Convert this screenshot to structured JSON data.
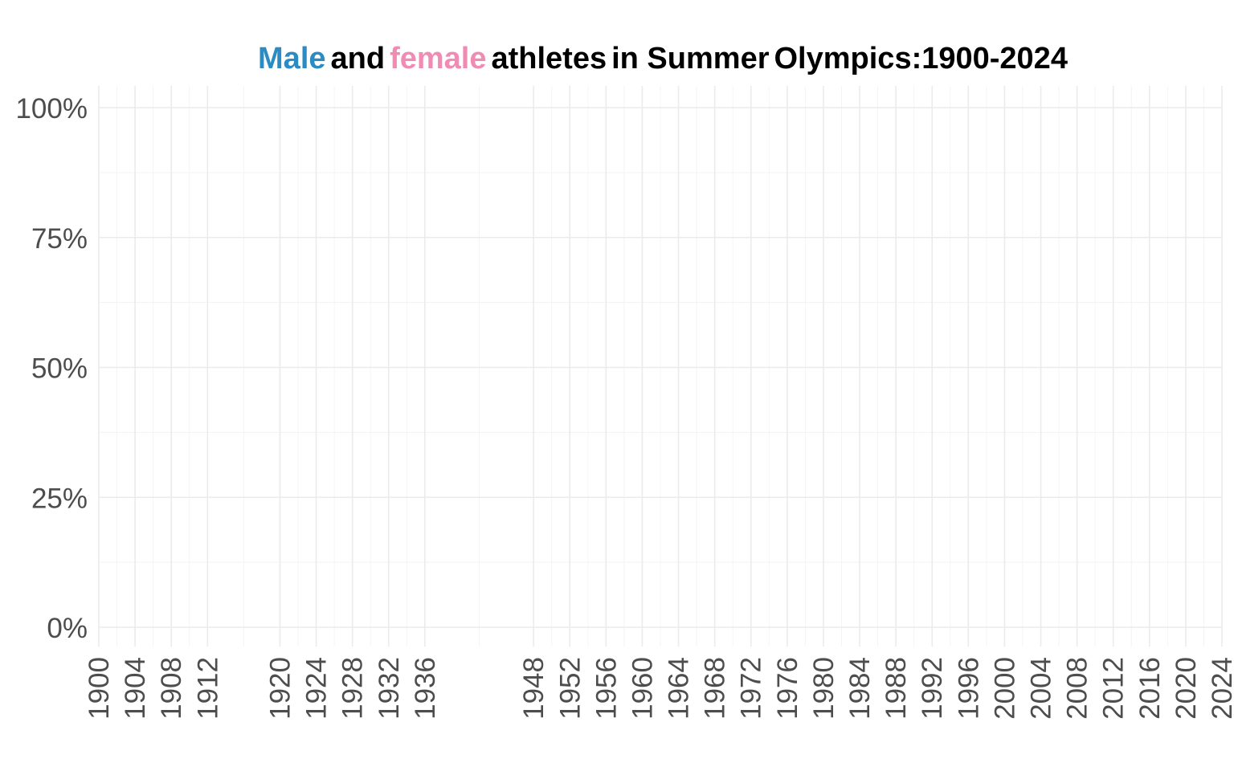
{
  "chart_data": {
    "type": "area",
    "title": {
      "parts": [
        {
          "text": "Male",
          "color": "#2b8cc4"
        },
        {
          "text": "and",
          "color": "#000000"
        },
        {
          "text": "female",
          "color": "#f08cb4"
        },
        {
          "text": "athletes",
          "color": "#000000"
        },
        {
          "text": "in Summer",
          "color": "#000000"
        },
        {
          "text": "Olympics:1900-2024",
          "color": "#000000"
        }
      ]
    },
    "xlabel": "",
    "ylabel": "",
    "x_ticks": [
      1900,
      1904,
      1908,
      1912,
      1920,
      1924,
      1928,
      1932,
      1936,
      1948,
      1952,
      1956,
      1960,
      1964,
      1968,
      1972,
      1976,
      1980,
      1984,
      1988,
      1992,
      1996,
      2000,
      2004,
      2008,
      2012,
      2016,
      2020,
      2024
    ],
    "y_ticks": [
      0,
      0.25,
      0.5,
      0.75,
      1.0
    ],
    "y_tick_labels": [
      "0%",
      "25%",
      "50%",
      "75%",
      "100%"
    ],
    "xlim": [
      1900,
      2024
    ],
    "ylim": [
      0,
      1
    ],
    "grid": true,
    "series": [
      {
        "name": "Male",
        "color": "#2b8cc4",
        "values": []
      },
      {
        "name": "female",
        "color": "#f08cb4",
        "values": []
      }
    ]
  }
}
